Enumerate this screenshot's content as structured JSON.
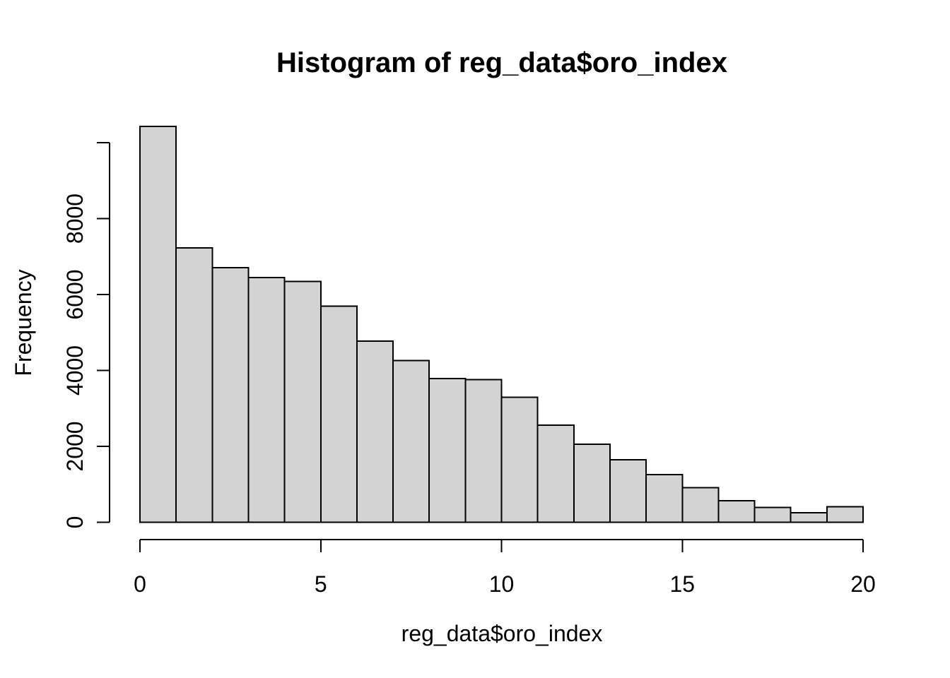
{
  "figure": {
    "background": "#ffffff",
    "text_color": "#000000"
  },
  "chart_data": {
    "type": "bar",
    "subtype": "histogram",
    "title": "Histogram of reg_data$oro_index",
    "xlabel": "reg_data$oro_index",
    "ylabel": "Frequency",
    "xlim": [
      0,
      20
    ],
    "ylim": [
      0,
      10000
    ],
    "grid": false,
    "legend": false,
    "bin_width": 1,
    "bin_edges": [
      0,
      1,
      2,
      3,
      4,
      5,
      6,
      7,
      8,
      9,
      10,
      11,
      12,
      13,
      14,
      15,
      16,
      17,
      18,
      19,
      20
    ],
    "values": [
      10430,
      7230,
      6710,
      6450,
      6340,
      5690,
      4770,
      4260,
      3790,
      3760,
      3290,
      2560,
      2060,
      1650,
      1260,
      910,
      570,
      390,
      250,
      410
    ],
    "x_ticks": [
      {
        "value": 0,
        "label": "0"
      },
      {
        "value": 5,
        "label": "5"
      },
      {
        "value": 10,
        "label": "10"
      },
      {
        "value": 15,
        "label": "15"
      },
      {
        "value": 20,
        "label": "20"
      }
    ],
    "y_ticks": [
      {
        "value": 0,
        "label": "0"
      },
      {
        "value": 2000,
        "label": "2000"
      },
      {
        "value": 4000,
        "label": "4000"
      },
      {
        "value": 6000,
        "label": "6000"
      },
      {
        "value": 8000,
        "label": "8000"
      },
      {
        "value": 10000,
        "label": ""
      }
    ],
    "bar_fill": "#d3d3d3",
    "bar_stroke": "#000000"
  }
}
